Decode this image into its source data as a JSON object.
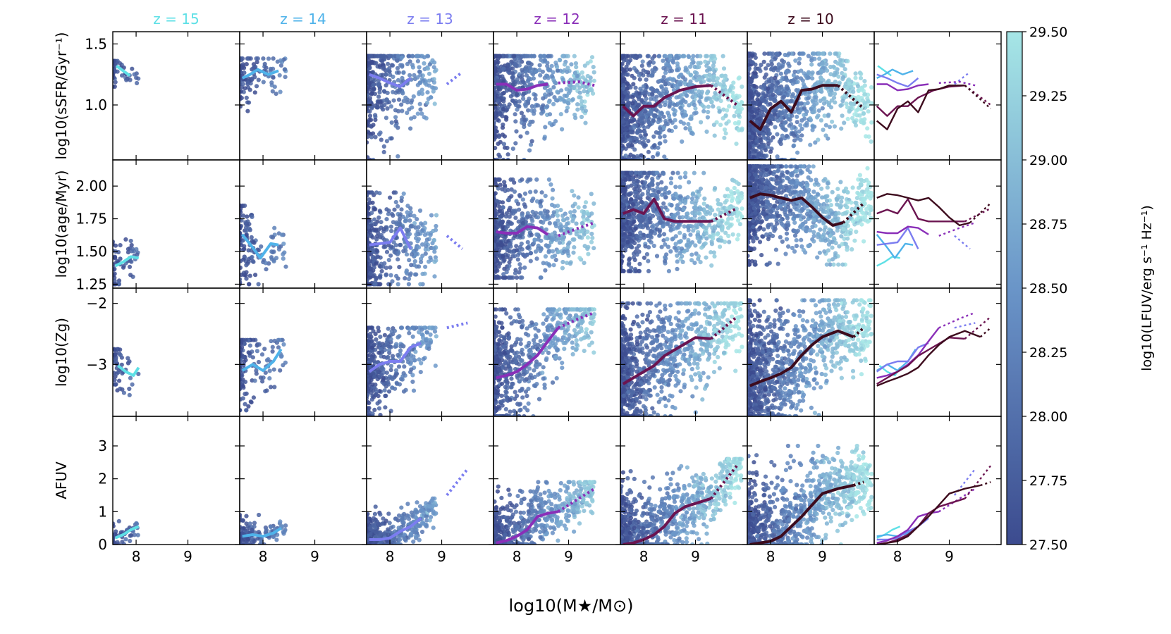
{
  "chart_data": {
    "type": "scatter",
    "title": "",
    "xlabel": "log10(M★/M⊙)",
    "xlim": [
      7.55,
      10.0
    ],
    "x_ticks": [
      8,
      9
    ],
    "x_tick_labels": [
      "8",
      "9"
    ],
    "redshift_colors": {
      "15": "#5ee0e6",
      "14": "#4fb3ea",
      "13": "#7b7df0",
      "12": "#8a2fb8",
      "11": "#6b1450",
      "10": "#3d0b1d"
    },
    "columns": [
      {
        "title": "z = 15",
        "z": "15"
      },
      {
        "title": "z = 14",
        "z": "14"
      },
      {
        "title": "z = 13",
        "z": "13"
      },
      {
        "title": "z = 12",
        "z": "12"
      },
      {
        "title": "z = 11",
        "z": "11"
      },
      {
        "title": "z = 10",
        "z": "10"
      },
      {
        "title": "",
        "z": "all"
      }
    ],
    "rows": [
      {
        "ylabel": "log10(sSFR/Gyr⁻¹)",
        "ylim": [
          0.55,
          1.6
        ],
        "y_ticks": [
          1.0,
          1.5
        ],
        "y_tick_labels": [
          "1.0",
          "1.5"
        ],
        "medians": {
          "15": {
            "x": [
              7.62,
              7.75,
              7.88
            ],
            "y": [
              1.32,
              1.28,
              1.24
            ],
            "dx": [],
            "dy": []
          },
          "14": {
            "x": [
              7.6,
              7.75,
              7.9,
              8.1,
              8.3
            ],
            "y": [
              1.22,
              1.25,
              1.29,
              1.25,
              1.28
            ],
            "dx": [],
            "dy": []
          },
          "13": {
            "x": [
              7.6,
              7.8,
              8.0,
              8.2,
              8.4
            ],
            "y": [
              1.25,
              1.22,
              1.18,
              1.15,
              1.22
            ],
            "dx": [
              9.1,
              9.4
            ],
            "dy": [
              1.17,
              1.27
            ]
          },
          "12": {
            "x": [
              7.6,
              7.8,
              8.0,
              8.2,
              8.4,
              8.6
            ],
            "y": [
              1.17,
              1.17,
              1.12,
              1.13,
              1.16,
              1.17
            ],
            "dx": [
              8.8,
              9.2,
              9.5
            ],
            "dy": [
              1.18,
              1.19,
              1.16
            ]
          },
          "11": {
            "x": [
              7.6,
              7.8,
              8.0,
              8.2,
              8.4,
              8.7,
              9.0,
              9.3
            ],
            "y": [
              0.99,
              0.91,
              0.99,
              0.99,
              1.06,
              1.12,
              1.15,
              1.16
            ],
            "dx": [
              9.3,
              9.8
            ],
            "dy": [
              1.16,
              1.0
            ]
          },
          "10": {
            "x": [
              7.6,
              7.8,
              8.0,
              8.2,
              8.4,
              8.6,
              8.8,
              9.0,
              9.3
            ],
            "y": [
              0.87,
              0.8,
              0.97,
              1.03,
              0.94,
              1.12,
              1.13,
              1.16,
              1.16
            ],
            "dx": [
              9.3,
              9.8
            ],
            "dy": [
              1.16,
              0.97
            ]
          }
        },
        "cloud": {
          "15": {
            "xmin": 7.55,
            "xmax": 8.05,
            "ymin": 1.15,
            "ymax": 1.36,
            "n": 45
          },
          "14": {
            "xmin": 7.55,
            "xmax": 8.45,
            "ymin": 0.95,
            "ymax": 1.38,
            "n": 110
          },
          "13": {
            "xmin": 7.55,
            "xmax": 8.9,
            "ymin": 0.55,
            "ymax": 1.4,
            "n": 420
          },
          "12": {
            "xmin": 7.55,
            "xmax": 9.5,
            "ymin": 0.55,
            "ymax": 1.4,
            "n": 650
          },
          "11": {
            "xmin": 7.55,
            "xmax": 9.9,
            "ymin": 0.55,
            "ymax": 1.4,
            "n": 950
          },
          "10": {
            "xmin": 7.55,
            "xmax": 9.95,
            "ymin": 0.55,
            "ymax": 1.42,
            "n": 1150
          }
        }
      },
      {
        "ylabel": "log10(age/Myr)",
        "ylim": [
          1.22,
          2.2
        ],
        "y_ticks": [
          1.25,
          1.5,
          1.75,
          2.0
        ],
        "y_tick_labels": [
          "1.25",
          "1.50",
          "1.75",
          "2.00"
        ],
        "medians": {
          "15": {
            "x": [
              7.6,
              7.75,
              7.9,
              8.05
            ],
            "y": [
              1.39,
              1.42,
              1.46,
              1.45
            ],
            "dx": [],
            "dy": []
          },
          "14": {
            "x": [
              7.6,
              7.8,
              7.95,
              8.15,
              8.3
            ],
            "y": [
              1.63,
              1.53,
              1.45,
              1.56,
              1.55
            ],
            "dx": [],
            "dy": []
          },
          "13": {
            "x": [
              7.6,
              7.8,
              8.0,
              8.2,
              8.4
            ],
            "y": [
              1.55,
              1.56,
              1.57,
              1.68,
              1.52
            ],
            "dx": [
              9.1,
              9.4
            ],
            "dy": [
              1.62,
              1.52
            ]
          },
          "12": {
            "x": [
              7.6,
              7.8,
              8.0,
              8.2,
              8.4,
              8.6
            ],
            "y": [
              1.65,
              1.64,
              1.64,
              1.69,
              1.68,
              1.63
            ],
            "dx": [
              8.8,
              9.2,
              9.5
            ],
            "dy": [
              1.62,
              1.68,
              1.72
            ]
          },
          "11": {
            "x": [
              7.6,
              7.8,
              8.0,
              8.2,
              8.4,
              8.6,
              8.8,
              9.0,
              9.3
            ],
            "y": [
              1.79,
              1.82,
              1.79,
              1.9,
              1.75,
              1.73,
              1.73,
              1.73,
              1.73
            ],
            "dx": [
              9.3,
              9.8
            ],
            "dy": [
              1.73,
              1.83
            ]
          },
          "10": {
            "x": [
              7.6,
              7.8,
              8.0,
              8.2,
              8.4,
              8.6,
              8.8,
              9.0,
              9.2,
              9.4
            ],
            "y": [
              1.91,
              1.94,
              1.93,
              1.91,
              1.89,
              1.91,
              1.84,
              1.76,
              1.7,
              1.72
            ],
            "dx": [
              9.4,
              9.8
            ],
            "dy": [
              1.72,
              1.87
            ]
          }
        },
        "cloud": {
          "15": {
            "xmin": 7.55,
            "xmax": 8.05,
            "ymin": 1.25,
            "ymax": 1.62,
            "n": 55
          },
          "14": {
            "xmin": 7.55,
            "xmax": 8.45,
            "ymin": 1.25,
            "ymax": 1.85,
            "n": 130
          },
          "13": {
            "xmin": 7.55,
            "xmax": 8.9,
            "ymin": 1.25,
            "ymax": 1.95,
            "n": 420
          },
          "12": {
            "xmin": 7.55,
            "xmax": 9.5,
            "ymin": 1.3,
            "ymax": 2.05,
            "n": 650
          },
          "11": {
            "xmin": 7.55,
            "xmax": 9.9,
            "ymin": 1.35,
            "ymax": 2.1,
            "n": 950
          },
          "10": {
            "xmin": 7.55,
            "xmax": 9.95,
            "ymin": 1.4,
            "ymax": 2.15,
            "n": 1150
          }
        }
      },
      {
        "ylabel": "log10(Zg)",
        "ylim": [
          -3.85,
          -1.75
        ],
        "y_ticks": [
          -3,
          -2
        ],
        "y_tick_labels": [
          "−3",
          "−2"
        ],
        "medians": {
          "15": {
            "x": [
              7.65,
              7.8,
              7.95,
              8.05
            ],
            "y": [
              -3.02,
              -3.12,
              -3.18,
              -3.05
            ],
            "dx": [],
            "dy": []
          },
          "14": {
            "x": [
              7.6,
              7.8,
              8.0,
              8.2,
              8.35
            ],
            "y": [
              -3.1,
              -3.0,
              -3.1,
              -2.95,
              -2.75
            ],
            "dx": [],
            "dy": []
          },
          "13": {
            "x": [
              7.6,
              7.8,
              8.0,
              8.2,
              8.4,
              8.6
            ],
            "y": [
              -3.12,
              -3.0,
              -2.95,
              -2.95,
              -2.72,
              -2.65
            ],
            "dx": [
              9.1,
              9.5
            ],
            "dy": [
              -2.4,
              -2.32
            ]
          },
          "12": {
            "x": [
              7.6,
              7.8,
              8.0,
              8.2,
              8.4,
              8.6,
              8.8
            ],
            "y": [
              -3.22,
              -3.18,
              -3.12,
              -3.0,
              -2.85,
              -2.62,
              -2.4
            ],
            "dx": [
              8.8,
              9.2,
              9.5
            ],
            "dy": [
              -2.4,
              -2.25,
              -2.15
            ]
          },
          "11": {
            "x": [
              7.6,
              7.8,
              8.0,
              8.2,
              8.4,
              8.6,
              8.8,
              9.0,
              9.3
            ],
            "y": [
              -3.32,
              -3.22,
              -3.12,
              -3.02,
              -2.86,
              -2.76,
              -2.66,
              -2.56,
              -2.58
            ],
            "dx": [
              9.3,
              9.8
            ],
            "dy": [
              -2.58,
              -2.22
            ]
          },
          "10": {
            "x": [
              7.6,
              7.8,
              8.0,
              8.2,
              8.4,
              8.6,
              8.8,
              9.0,
              9.3,
              9.6
            ],
            "y": [
              -3.35,
              -3.28,
              -3.22,
              -3.15,
              -3.05,
              -2.85,
              -2.68,
              -2.55,
              -2.45,
              -2.55
            ],
            "dx": [
              9.6,
              9.8
            ],
            "dy": [
              -2.55,
              -2.4
            ]
          }
        },
        "cloud": {
          "15": {
            "xmin": 7.55,
            "xmax": 8.05,
            "ymin": -3.6,
            "ymax": -2.75,
            "n": 50
          },
          "14": {
            "xmin": 7.55,
            "xmax": 8.45,
            "ymin": -3.75,
            "ymax": -2.6,
            "n": 130
          },
          "13": {
            "xmin": 7.55,
            "xmax": 8.9,
            "ymin": -3.85,
            "ymax": -2.4,
            "n": 420
          },
          "12": {
            "xmin": 7.55,
            "xmax": 9.5,
            "ymin": -3.85,
            "ymax": -2.1,
            "n": 650
          },
          "11": {
            "xmin": 7.55,
            "xmax": 9.9,
            "ymin": -3.85,
            "ymax": -2.0,
            "n": 950
          },
          "10": {
            "xmin": 7.55,
            "xmax": 9.95,
            "ymin": -3.85,
            "ymax": -1.95,
            "n": 1150
          }
        }
      },
      {
        "ylabel": "AFUV",
        "ylim": [
          0,
          3.9
        ],
        "y_ticks": [
          0,
          1,
          2,
          3
        ],
        "y_tick_labels": [
          "0",
          "1",
          "2",
          "3"
        ],
        "medians": {
          "15": {
            "x": [
              7.6,
              7.75,
              7.9,
              8.05
            ],
            "y": [
              0.2,
              0.3,
              0.45,
              0.55
            ],
            "dx": [],
            "dy": []
          },
          "14": {
            "x": [
              7.6,
              7.8,
              8.0,
              8.2,
              8.35
            ],
            "y": [
              0.25,
              0.3,
              0.25,
              0.35,
              0.5
            ],
            "dx": [],
            "dy": []
          },
          "13": {
            "x": [
              7.6,
              7.8,
              8.0,
              8.2,
              8.4,
              8.6
            ],
            "y": [
              0.15,
              0.15,
              0.2,
              0.4,
              0.55,
              0.8
            ],
            "dx": [
              9.1,
              9.5
            ],
            "dy": [
              1.5,
              2.3
            ]
          },
          "12": {
            "x": [
              7.6,
              7.8,
              8.0,
              8.2,
              8.4,
              8.6,
              8.8
            ],
            "y": [
              0.05,
              0.12,
              0.25,
              0.45,
              0.85,
              0.95,
              1.0
            ],
            "dx": [
              8.8,
              9.2,
              9.5
            ],
            "dy": [
              1.0,
              1.4,
              1.7
            ]
          },
          "11": {
            "x": [
              7.6,
              7.8,
              8.0,
              8.2,
              8.4,
              8.6,
              8.8,
              9.0,
              9.3
            ],
            "y": [
              0,
              0.05,
              0.15,
              0.3,
              0.55,
              0.95,
              1.15,
              1.25,
              1.4
            ],
            "dx": [
              9.3,
              9.8
            ],
            "dy": [
              1.4,
              2.4
            ]
          },
          "10": {
            "x": [
              7.6,
              7.8,
              8.0,
              8.2,
              8.4,
              8.6,
              8.8,
              9.0,
              9.3,
              9.6
            ],
            "y": [
              0,
              0.05,
              0.1,
              0.25,
              0.55,
              0.85,
              1.2,
              1.55,
              1.7,
              1.8
            ],
            "dx": [
              9.6,
              9.8
            ],
            "dy": [
              1.8,
              1.9
            ]
          }
        },
        "cloud": {
          "15": {
            "xmin": 7.55,
            "xmax": 8.05,
            "ymin": 0.0,
            "ymax": 0.75,
            "n": 50
          },
          "14": {
            "xmin": 7.55,
            "xmax": 8.45,
            "ymin": 0.0,
            "ymax": 0.9,
            "n": 130
          },
          "13": {
            "xmin": 7.55,
            "xmax": 8.9,
            "ymin": 0.0,
            "ymax": 1.4,
            "n": 420
          },
          "12": {
            "xmin": 7.55,
            "xmax": 9.5,
            "ymin": 0.0,
            "ymax": 1.9,
            "n": 650
          },
          "11": {
            "xmin": 7.55,
            "xmax": 9.9,
            "ymin": 0.0,
            "ymax": 2.6,
            "n": 950
          },
          "10": {
            "xmin": 7.55,
            "xmax": 9.95,
            "ymin": 0.0,
            "ymax": 3.0,
            "n": 1150
          }
        }
      }
    ],
    "colorbar": {
      "label": "log10(LFUV/erg s⁻¹ Hz⁻¹)",
      "range": [
        27.5,
        29.5
      ],
      "ticks": [
        27.5,
        27.75,
        28.0,
        28.25,
        28.5,
        28.75,
        29.0,
        29.25,
        29.5
      ],
      "tick_labels": [
        "27.50",
        "27.75",
        "28.00",
        "28.25",
        "28.50",
        "28.75",
        "29.00",
        "29.25",
        "29.50"
      ],
      "color_low": "#3c4b8f",
      "color_mid": "#6a95c8",
      "color_high": "#a6e6e6"
    }
  }
}
